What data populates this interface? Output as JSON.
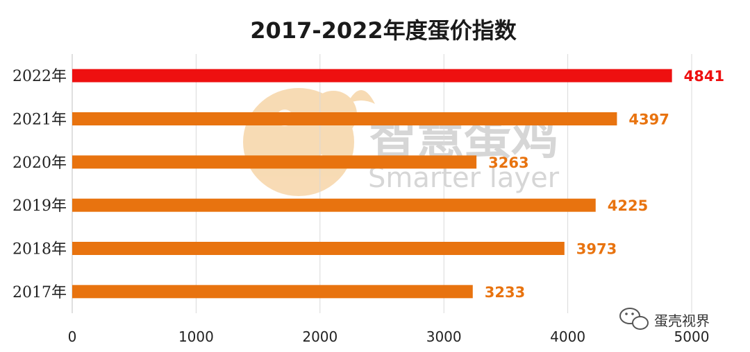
{
  "chart_data": {
    "type": "bar",
    "orientation": "horizontal",
    "title": "2017-2022年度蛋价指数",
    "categories": [
      "2022年",
      "2021年",
      "2020年",
      "2019年",
      "2018年",
      "2017年"
    ],
    "values": [
      4841,
      4397,
      3263,
      4225,
      3973,
      3233
    ],
    "xlim": [
      0,
      5000
    ],
    "xticks": [
      0,
      1000,
      2000,
      3000,
      4000,
      5000
    ],
    "grid": "vertical",
    "legend": "none",
    "bar_color": "#e8730f",
    "highlight_color": "#ee1010",
    "highlight_index": 0
  },
  "watermark": {
    "text_cn": "智慧蛋鸡",
    "text_en": "Smarter layer",
    "logo_color": "#f5cf9c"
  },
  "corner_badge": {
    "text": "蛋壳视界",
    "icon": "wechat-icon"
  }
}
